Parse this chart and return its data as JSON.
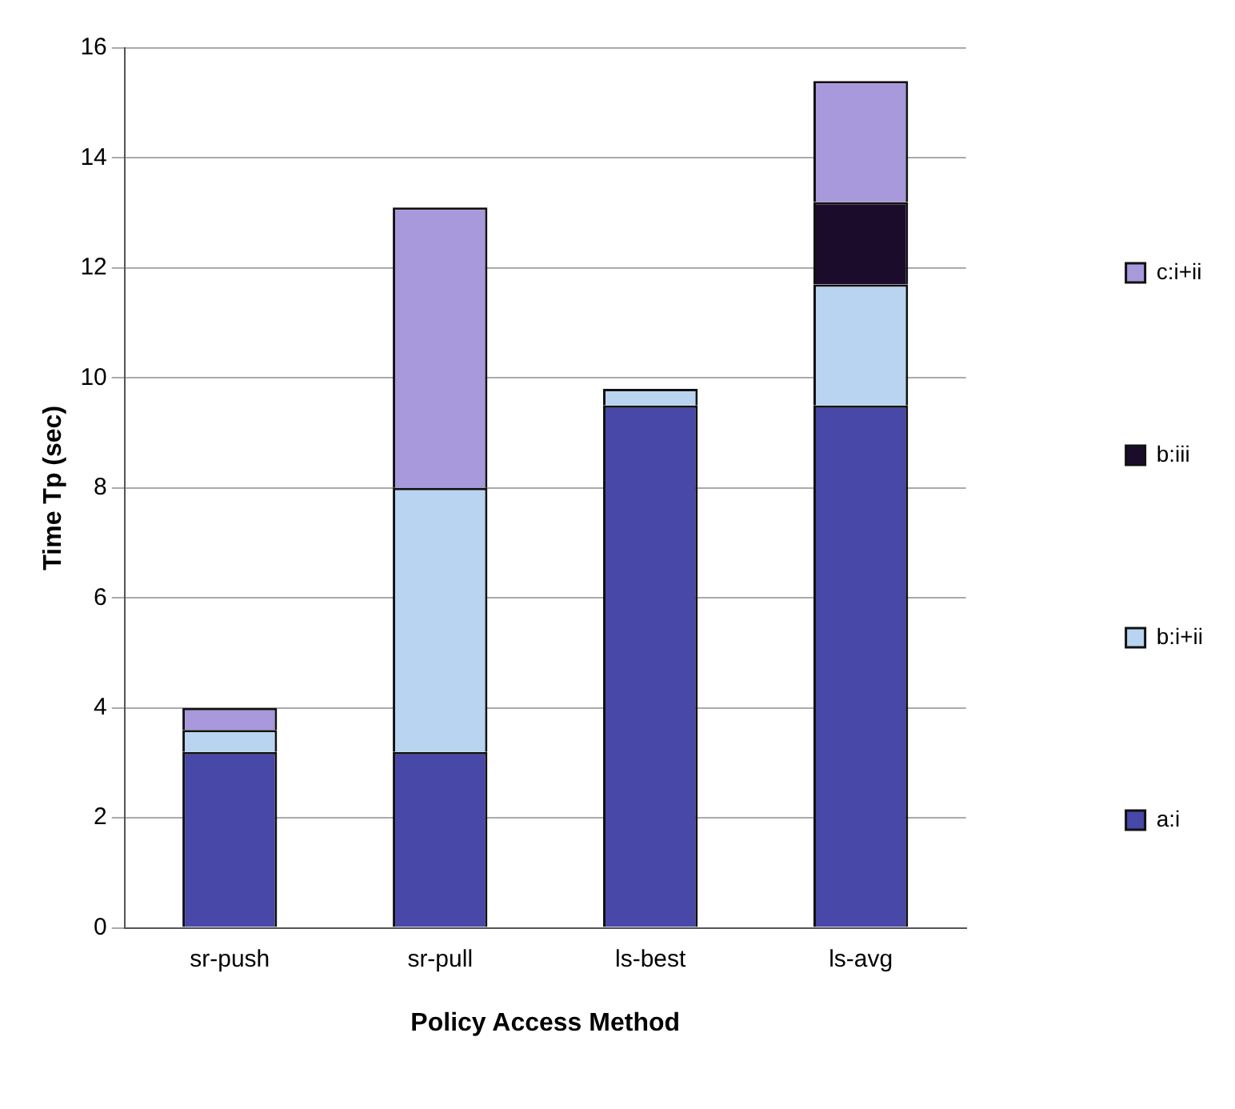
{
  "chart_data": {
    "type": "bar",
    "stacked": true,
    "xlabel": "Policy Access Method",
    "ylabel": "Time Tp (sec)",
    "categories": [
      "sr-push",
      "sr-pull",
      "ls-best",
      "ls-avg"
    ],
    "series": [
      {
        "name": "a:i",
        "color": "#4848a8",
        "values": [
          3.2,
          3.2,
          9.5,
          9.5
        ]
      },
      {
        "name": "b:i+ii",
        "color": "#b8d4f0",
        "values": [
          0.4,
          4.8,
          0.3,
          2.2
        ]
      },
      {
        "name": "b:iii",
        "color": "#1c0c2c",
        "values": [
          0,
          0,
          0,
          1.5
        ]
      },
      {
        "name": "c:i+ii",
        "color": "#a898dc",
        "values": [
          0.4,
          5.1,
          0,
          2.2
        ]
      }
    ],
    "ylim": [
      0,
      16
    ],
    "yticks": [
      0,
      2,
      4,
      6,
      8,
      10,
      12,
      14,
      16
    ],
    "grid": "y",
    "legend": "right"
  }
}
